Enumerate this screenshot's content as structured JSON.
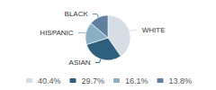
{
  "chart_data": {
    "type": "pie",
    "categories": [
      "WHITE",
      "ASIAN",
      "HISPANIC",
      "BLACK"
    ],
    "values": [
      40.4,
      29.7,
      16.1,
      13.8
    ],
    "value_labels": [
      "40.4%",
      "29.7%",
      "16.1%",
      "13.8%"
    ],
    "colors": [
      "#d6dde5",
      "#2e5f7c",
      "#8aaec4",
      "#6080a0"
    ],
    "legend": "bottom"
  }
}
